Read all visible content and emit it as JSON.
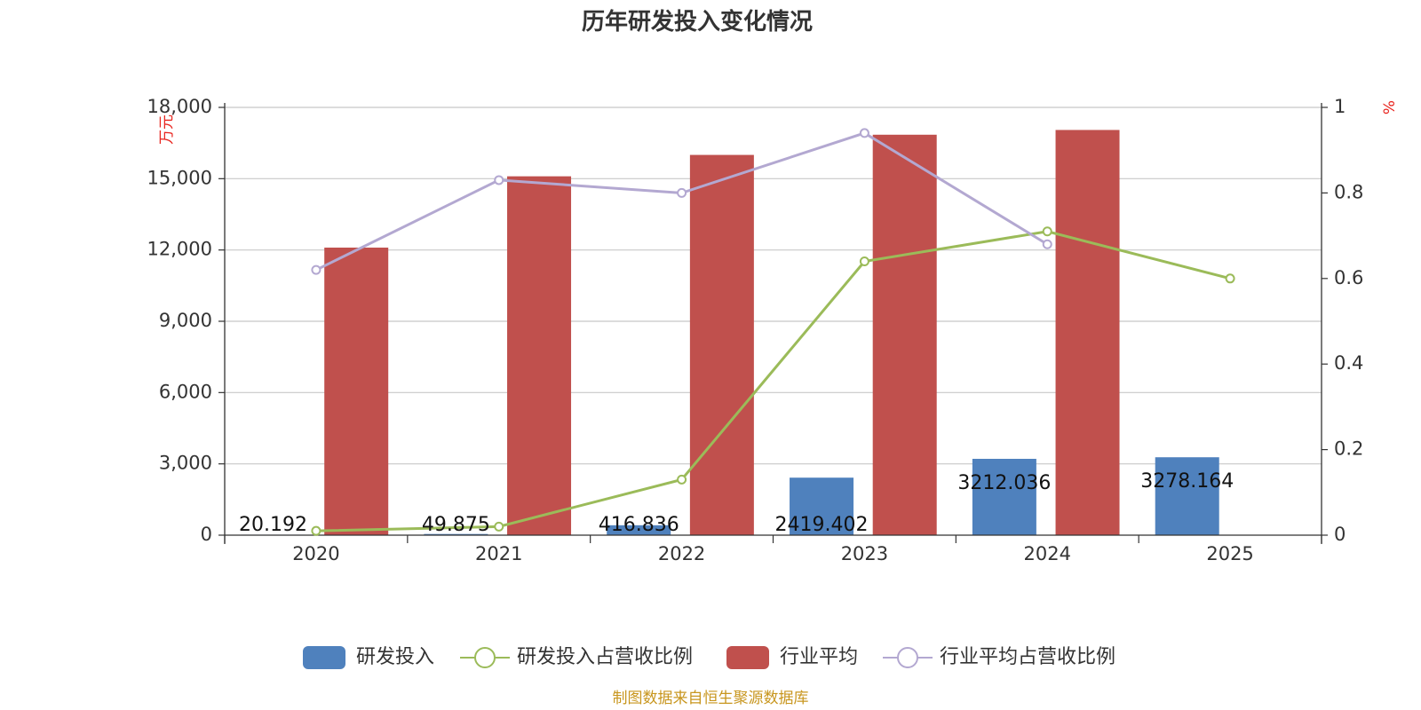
{
  "chart_data": {
    "type": "bar",
    "title": "历年研发投入变化情况",
    "categories": [
      "2020",
      "2021",
      "2022",
      "2023",
      "2024",
      "2025"
    ],
    "series": [
      {
        "name": "研发投入",
        "type": "bar",
        "axis": "left",
        "color": "#4f81bd",
        "values": [
          20.192,
          49.875,
          416.836,
          2419.402,
          3212.036,
          3278.164
        ],
        "labels": [
          "20.192",
          "49.875",
          "416.836",
          "2419.402",
          "3212.036",
          "3278.164"
        ]
      },
      {
        "name": "研发投入占营收比例",
        "type": "line",
        "axis": "right",
        "color": "#9bbb59",
        "values": [
          0.01,
          0.02,
          0.13,
          0.64,
          0.71,
          0.6
        ]
      },
      {
        "name": "行业平均",
        "type": "bar",
        "axis": "left",
        "color": "#c0504d",
        "values": [
          12100,
          15100,
          16000,
          16850,
          17050,
          null
        ]
      },
      {
        "name": "行业平均占营收比例",
        "type": "line",
        "axis": "right",
        "color": "#b3a8d1",
        "values": [
          0.62,
          0.83,
          0.8,
          0.94,
          0.68,
          null
        ]
      }
    ],
    "y_left": {
      "label": "万元",
      "ylim": [
        0,
        18000
      ],
      "ticks": [
        "0",
        "3,000",
        "6,000",
        "9,000",
        "12,000",
        "15,000",
        "18,000"
      ]
    },
    "y_right": {
      "label": "%",
      "ylim": [
        0,
        1
      ],
      "ticks": [
        "0",
        "0.2",
        "0.4",
        "0.6",
        "0.8",
        "1"
      ]
    },
    "grid": true,
    "legend_position": "bottom",
    "source": "制图数据来自恒生聚源数据库"
  }
}
